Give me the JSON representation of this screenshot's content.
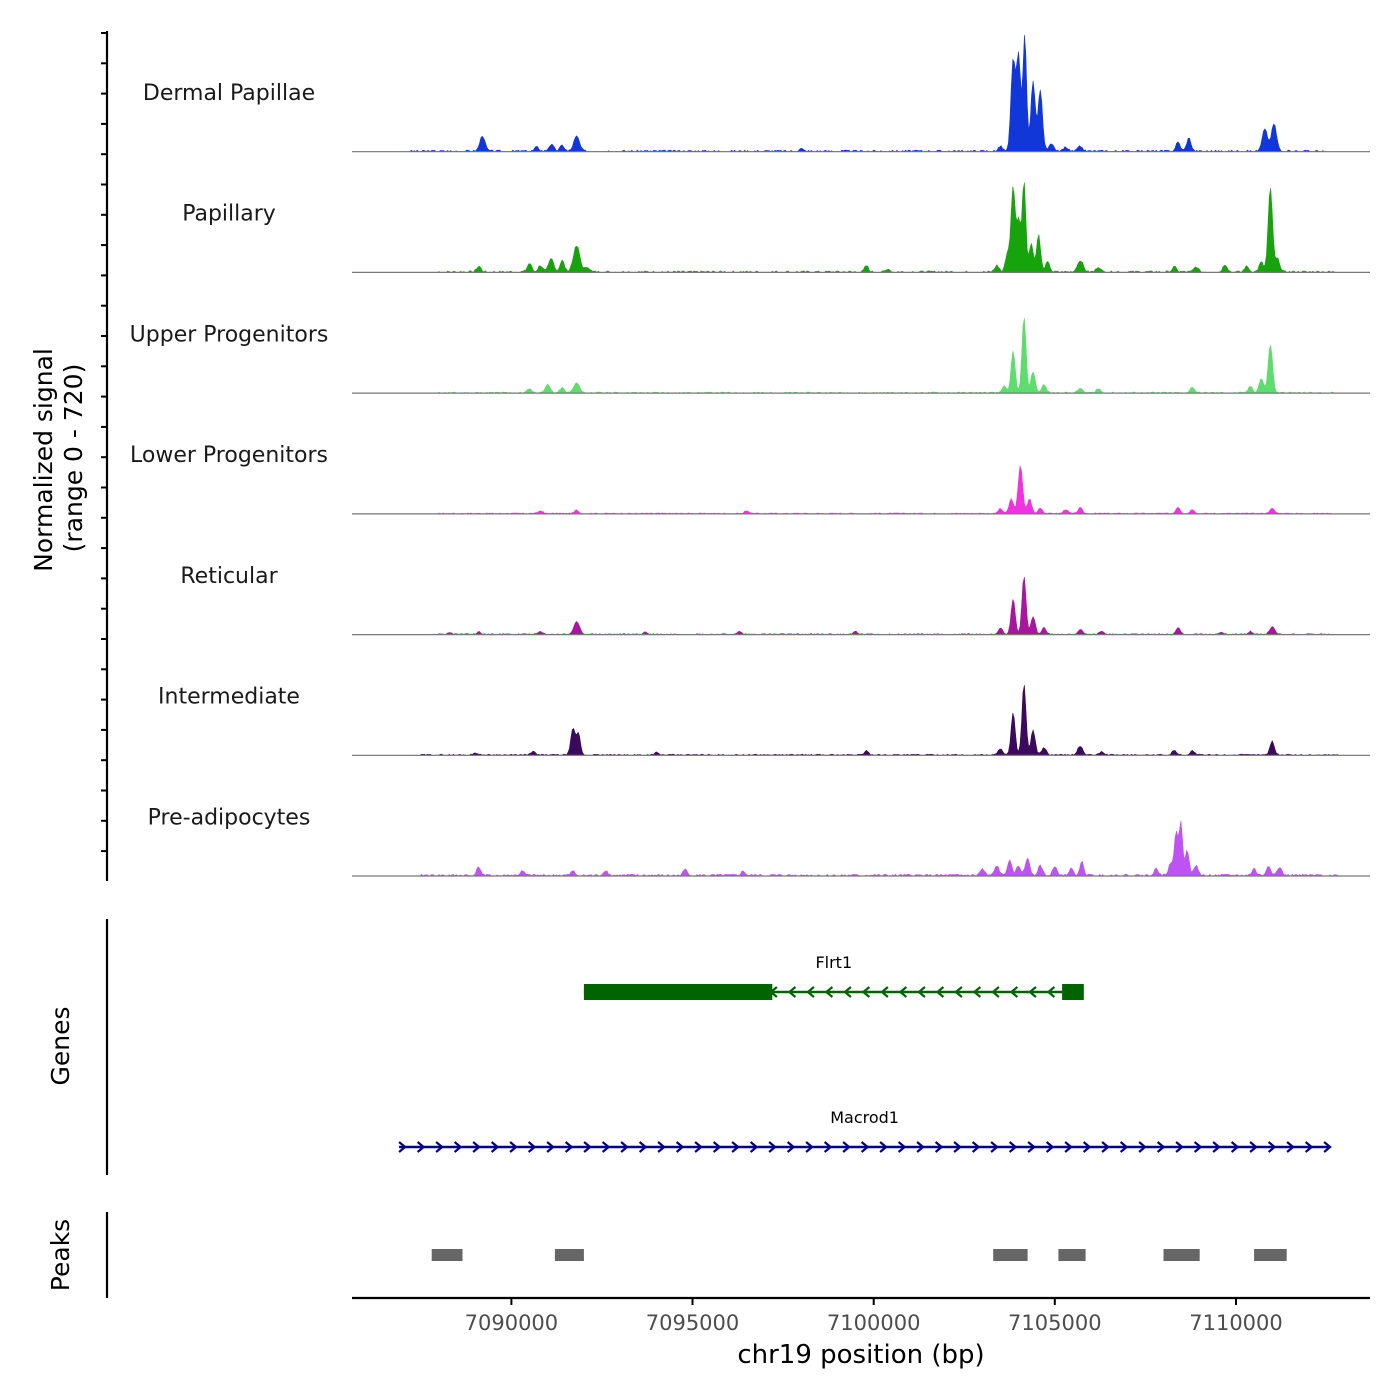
{
  "chart_data": {
    "type": "area",
    "chromosome": "chr19",
    "xlabel": "chr19 position (bp)",
    "ylabel_line1": "Normalized signal",
    "ylabel_line2": "(range 0 - 720)",
    "signal_range": [
      0,
      720
    ],
    "xlim": [
      7085600,
      7113700
    ],
    "x_ticks": [
      7090000,
      7095000,
      7100000,
      7105000,
      7110000
    ],
    "x_tick_labels": [
      "7090000",
      "7095000",
      "7100000",
      "7105000",
      "7110000"
    ],
    "region_start": 7086900,
    "region_end": 7112600,
    "tracks": [
      {
        "name": "Dermal Papillae",
        "color": "#1237d9",
        "noise": 10,
        "noise_seed": 3,
        "noise_range": [
          7087200,
          7112400
        ],
        "peaks": [
          {
            "pos": 7089200,
            "height": 95,
            "width": 70
          },
          {
            "pos": 7090700,
            "height": 25,
            "width": 60
          },
          {
            "pos": 7091100,
            "height": 40,
            "width": 70
          },
          {
            "pos": 7091400,
            "height": 35,
            "width": 60
          },
          {
            "pos": 7091800,
            "height": 90,
            "width": 80
          },
          {
            "pos": 7098000,
            "height": 15,
            "width": 50
          },
          {
            "pos": 7103500,
            "height": 30,
            "width": 60
          },
          {
            "pos": 7103850,
            "height": 560,
            "width": 60
          },
          {
            "pos": 7104000,
            "height": 590,
            "width": 55
          },
          {
            "pos": 7104170,
            "height": 720,
            "width": 50
          },
          {
            "pos": 7104400,
            "height": 430,
            "width": 60
          },
          {
            "pos": 7104600,
            "height": 380,
            "width": 60
          },
          {
            "pos": 7104900,
            "height": 40,
            "width": 70
          },
          {
            "pos": 7105300,
            "height": 25,
            "width": 60
          },
          {
            "pos": 7105700,
            "height": 30,
            "width": 60
          },
          {
            "pos": 7108400,
            "height": 55,
            "width": 60
          },
          {
            "pos": 7108700,
            "height": 80,
            "width": 60
          },
          {
            "pos": 7110800,
            "height": 140,
            "width": 70
          },
          {
            "pos": 7111050,
            "height": 170,
            "width": 70
          }
        ]
      },
      {
        "name": "Papillary",
        "color": "#17a30c",
        "noise": 10,
        "noise_seed": 7,
        "noise_range": [
          7088000,
          7112800
        ],
        "peaks": [
          {
            "pos": 7089100,
            "height": 35,
            "width": 60
          },
          {
            "pos": 7090500,
            "height": 55,
            "width": 60
          },
          {
            "pos": 7090800,
            "height": 40,
            "width": 60
          },
          {
            "pos": 7091100,
            "height": 80,
            "width": 70
          },
          {
            "pos": 7091400,
            "height": 70,
            "width": 60
          },
          {
            "pos": 7091800,
            "height": 160,
            "width": 90
          },
          {
            "pos": 7092100,
            "height": 30,
            "width": 60
          },
          {
            "pos": 7099800,
            "height": 40,
            "width": 50
          },
          {
            "pos": 7100400,
            "height": 20,
            "width": 50
          },
          {
            "pos": 7103400,
            "height": 40,
            "width": 60
          },
          {
            "pos": 7103700,
            "height": 120,
            "width": 60
          },
          {
            "pos": 7103850,
            "height": 520,
            "width": 55
          },
          {
            "pos": 7104000,
            "height": 320,
            "width": 55
          },
          {
            "pos": 7104150,
            "height": 560,
            "width": 50
          },
          {
            "pos": 7104350,
            "height": 180,
            "width": 55
          },
          {
            "pos": 7104550,
            "height": 230,
            "width": 55
          },
          {
            "pos": 7104800,
            "height": 60,
            "width": 60
          },
          {
            "pos": 7105700,
            "height": 70,
            "width": 80
          },
          {
            "pos": 7106200,
            "height": 30,
            "width": 60
          },
          {
            "pos": 7108300,
            "height": 30,
            "width": 60
          },
          {
            "pos": 7108900,
            "height": 30,
            "width": 60
          },
          {
            "pos": 7109700,
            "height": 45,
            "width": 60
          },
          {
            "pos": 7110300,
            "height": 35,
            "width": 60
          },
          {
            "pos": 7110700,
            "height": 60,
            "width": 60
          },
          {
            "pos": 7110950,
            "height": 520,
            "width": 60
          },
          {
            "pos": 7111150,
            "height": 80,
            "width": 60
          }
        ]
      },
      {
        "name": "Upper Progenitors",
        "color": "#5fdc6e",
        "noise": 7,
        "noise_seed": 11,
        "noise_range": [
          7088000,
          7112700
        ],
        "peaks": [
          {
            "pos": 7090500,
            "height": 25,
            "width": 60
          },
          {
            "pos": 7091000,
            "height": 50,
            "width": 70
          },
          {
            "pos": 7091400,
            "height": 30,
            "width": 60
          },
          {
            "pos": 7091800,
            "height": 60,
            "width": 80
          },
          {
            "pos": 7103600,
            "height": 40,
            "width": 60
          },
          {
            "pos": 7103850,
            "height": 260,
            "width": 55
          },
          {
            "pos": 7104150,
            "height": 470,
            "width": 55
          },
          {
            "pos": 7104400,
            "height": 130,
            "width": 60
          },
          {
            "pos": 7104700,
            "height": 50,
            "width": 60
          },
          {
            "pos": 7105700,
            "height": 30,
            "width": 60
          },
          {
            "pos": 7106200,
            "height": 25,
            "width": 60
          },
          {
            "pos": 7108800,
            "height": 35,
            "width": 60
          },
          {
            "pos": 7110400,
            "height": 40,
            "width": 60
          },
          {
            "pos": 7110700,
            "height": 90,
            "width": 60
          },
          {
            "pos": 7110950,
            "height": 300,
            "width": 60
          }
        ]
      },
      {
        "name": "Lower Progenitors",
        "color": "#f033e0",
        "noise": 6,
        "noise_seed": 17,
        "noise_range": [
          7088000,
          7112600
        ],
        "peaks": [
          {
            "pos": 7090800,
            "height": 18,
            "width": 60
          },
          {
            "pos": 7091800,
            "height": 20,
            "width": 60
          },
          {
            "pos": 7096500,
            "height": 18,
            "width": 60
          },
          {
            "pos": 7103500,
            "height": 30,
            "width": 60
          },
          {
            "pos": 7103800,
            "height": 90,
            "width": 60
          },
          {
            "pos": 7104050,
            "height": 300,
            "width": 60
          },
          {
            "pos": 7104300,
            "height": 90,
            "width": 60
          },
          {
            "pos": 7104600,
            "height": 35,
            "width": 60
          },
          {
            "pos": 7105300,
            "height": 25,
            "width": 60
          },
          {
            "pos": 7105700,
            "height": 35,
            "width": 60
          },
          {
            "pos": 7108400,
            "height": 40,
            "width": 60
          },
          {
            "pos": 7108800,
            "height": 25,
            "width": 60
          },
          {
            "pos": 7111000,
            "height": 30,
            "width": 70
          }
        ]
      },
      {
        "name": "Reticular",
        "color": "#a8169d",
        "noise": 6,
        "noise_seed": 23,
        "noise_range": [
          7088000,
          7112600
        ],
        "peaks": [
          {
            "pos": 7088300,
            "height": 12,
            "width": 50
          },
          {
            "pos": 7089100,
            "height": 15,
            "width": 50
          },
          {
            "pos": 7090800,
            "height": 15,
            "width": 60
          },
          {
            "pos": 7091800,
            "height": 75,
            "width": 80
          },
          {
            "pos": 7093700,
            "height": 15,
            "width": 50
          },
          {
            "pos": 7096300,
            "height": 18,
            "width": 50
          },
          {
            "pos": 7099500,
            "height": 18,
            "width": 50
          },
          {
            "pos": 7103500,
            "height": 40,
            "width": 60
          },
          {
            "pos": 7103850,
            "height": 220,
            "width": 55
          },
          {
            "pos": 7104150,
            "height": 360,
            "width": 55
          },
          {
            "pos": 7104400,
            "height": 110,
            "width": 60
          },
          {
            "pos": 7104700,
            "height": 40,
            "width": 60
          },
          {
            "pos": 7105700,
            "height": 30,
            "width": 60
          },
          {
            "pos": 7106300,
            "height": 20,
            "width": 60
          },
          {
            "pos": 7108400,
            "height": 40,
            "width": 60
          },
          {
            "pos": 7109600,
            "height": 15,
            "width": 50
          },
          {
            "pos": 7110400,
            "height": 18,
            "width": 50
          },
          {
            "pos": 7111000,
            "height": 45,
            "width": 70
          }
        ]
      },
      {
        "name": "Intermediate",
        "color": "#3c0a5c",
        "noise": 7,
        "noise_seed": 29,
        "noise_range": [
          7087500,
          7112800
        ],
        "peaks": [
          {
            "pos": 7089000,
            "height": 15,
            "width": 50
          },
          {
            "pos": 7090600,
            "height": 20,
            "width": 60
          },
          {
            "pos": 7091700,
            "height": 160,
            "width": 60
          },
          {
            "pos": 7091850,
            "height": 130,
            "width": 55
          },
          {
            "pos": 7094000,
            "height": 15,
            "width": 50
          },
          {
            "pos": 7099800,
            "height": 30,
            "width": 50
          },
          {
            "pos": 7103500,
            "height": 40,
            "width": 60
          },
          {
            "pos": 7103850,
            "height": 260,
            "width": 55
          },
          {
            "pos": 7104150,
            "height": 440,
            "width": 55
          },
          {
            "pos": 7104400,
            "height": 150,
            "width": 60
          },
          {
            "pos": 7104700,
            "height": 45,
            "width": 60
          },
          {
            "pos": 7105700,
            "height": 55,
            "width": 70
          },
          {
            "pos": 7106300,
            "height": 20,
            "width": 60
          },
          {
            "pos": 7108300,
            "height": 30,
            "width": 60
          },
          {
            "pos": 7108800,
            "height": 25,
            "width": 60
          },
          {
            "pos": 7111000,
            "height": 85,
            "width": 60
          }
        ]
      },
      {
        "name": "Pre-adipocytes",
        "color": "#bf52f2",
        "noise": 11,
        "noise_seed": 41,
        "noise_range": [
          7087500,
          7112800
        ],
        "peaks": [
          {
            "pos": 7089100,
            "height": 50,
            "width": 60
          },
          {
            "pos": 7090300,
            "height": 25,
            "width": 60
          },
          {
            "pos": 7091700,
            "height": 25,
            "width": 60
          },
          {
            "pos": 7092600,
            "height": 30,
            "width": 60
          },
          {
            "pos": 7094800,
            "height": 35,
            "width": 60
          },
          {
            "pos": 7096400,
            "height": 25,
            "width": 60
          },
          {
            "pos": 7103000,
            "height": 40,
            "width": 60
          },
          {
            "pos": 7103400,
            "height": 60,
            "width": 60
          },
          {
            "pos": 7103750,
            "height": 90,
            "width": 60
          },
          {
            "pos": 7104000,
            "height": 60,
            "width": 60
          },
          {
            "pos": 7104250,
            "height": 110,
            "width": 60
          },
          {
            "pos": 7104600,
            "height": 60,
            "width": 60
          },
          {
            "pos": 7105000,
            "height": 50,
            "width": 60
          },
          {
            "pos": 7105450,
            "height": 40,
            "width": 60
          },
          {
            "pos": 7105750,
            "height": 85,
            "width": 50
          },
          {
            "pos": 7107800,
            "height": 40,
            "width": 60
          },
          {
            "pos": 7108200,
            "height": 70,
            "width": 60
          },
          {
            "pos": 7108350,
            "height": 270,
            "width": 50
          },
          {
            "pos": 7108480,
            "height": 330,
            "width": 45
          },
          {
            "pos": 7108650,
            "height": 160,
            "width": 55
          },
          {
            "pos": 7108900,
            "height": 60,
            "width": 60
          },
          {
            "pos": 7110500,
            "height": 40,
            "width": 60
          },
          {
            "pos": 7110900,
            "height": 60,
            "width": 60
          },
          {
            "pos": 7111200,
            "height": 50,
            "width": 60
          }
        ]
      }
    ],
    "genes_label": "Genes",
    "genes": [
      {
        "name": "Flrt1",
        "color": "#006400",
        "strand": "-",
        "start": 7092000,
        "end": 7105800,
        "exons": [
          [
            7092000,
            7097200
          ],
          [
            7105200,
            7105800
          ]
        ]
      },
      {
        "name": "Macrod1",
        "color": "#00008b",
        "strand": "+",
        "start": 7086900,
        "end": 7112600,
        "exons": []
      }
    ],
    "peaks_label": "Peaks",
    "peaks_color": "#666666",
    "peak_regions": [
      [
        7087800,
        7088650
      ],
      [
        7091200,
        7092000
      ],
      [
        7103300,
        7104250
      ],
      [
        7105100,
        7105850
      ],
      [
        7108000,
        7109000
      ],
      [
        7110500,
        7111400
      ]
    ]
  }
}
